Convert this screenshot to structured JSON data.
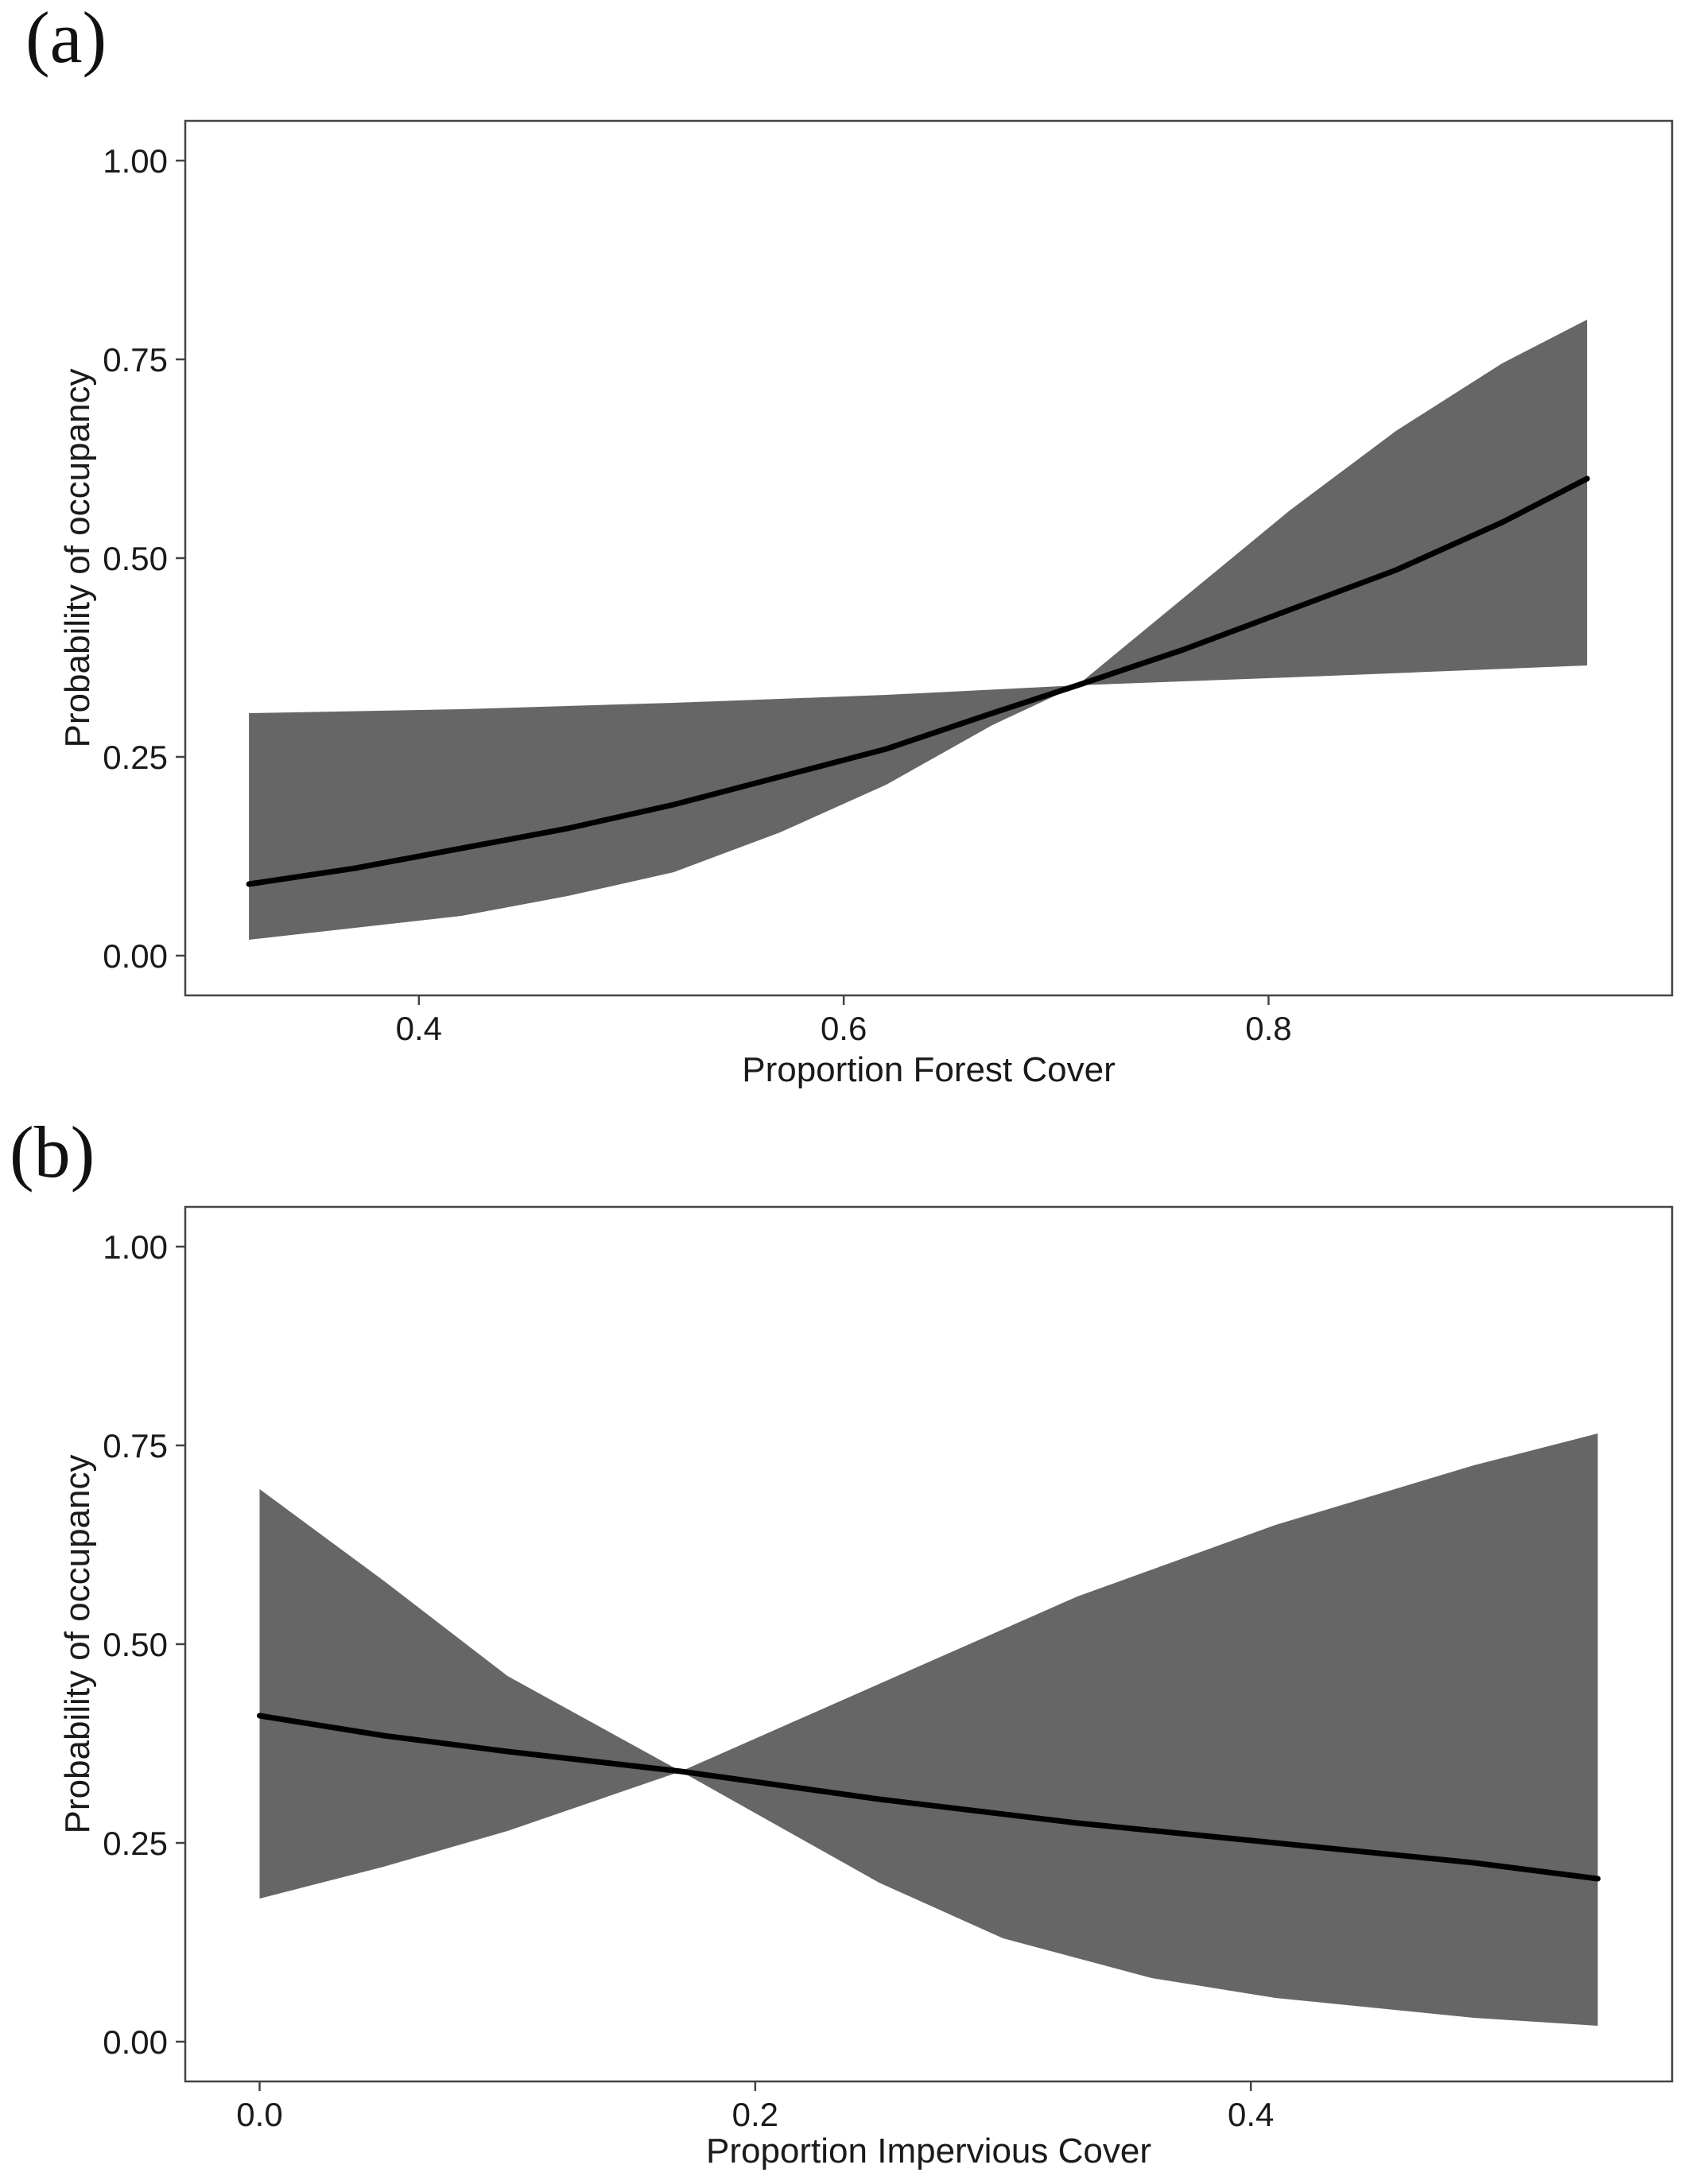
{
  "chart_data": [
    {
      "type": "line",
      "panel_label": "(a)",
      "xlabel": "Proportion Forest Cover",
      "ylabel": "Probability of occupancy",
      "xlim": [
        0.29,
        0.99
      ],
      "ylim": [
        -0.05,
        1.05
      ],
      "x_ticks": [
        0.4,
        0.6,
        0.8
      ],
      "x_tick_labels": [
        "0.4",
        "0.6",
        "0.8"
      ],
      "y_ticks": [
        0.0,
        0.25,
        0.5,
        0.75,
        1.0
      ],
      "y_tick_labels": [
        "0.00",
        "0.25",
        "0.50",
        "0.75",
        "1.00"
      ],
      "grid": false,
      "fit": {
        "x": [
          0.32,
          0.37,
          0.42,
          0.47,
          0.52,
          0.57,
          0.62,
          0.67,
          0.71,
          0.76,
          0.81,
          0.86,
          0.91,
          0.95
        ],
        "y": [
          0.09,
          0.11,
          0.135,
          0.16,
          0.19,
          0.225,
          0.26,
          0.305,
          0.34,
          0.385,
          0.435,
          0.485,
          0.545,
          0.6
        ]
      },
      "band_upper": {
        "x": [
          0.32,
          0.42,
          0.52,
          0.62,
          0.71,
          0.76,
          0.81,
          0.86,
          0.91,
          0.95
        ],
        "y": [
          0.305,
          0.31,
          0.318,
          0.328,
          0.34,
          0.45,
          0.56,
          0.66,
          0.745,
          0.8
        ]
      },
      "band_lower": {
        "x": [
          0.32,
          0.37,
          0.42,
          0.47,
          0.52,
          0.57,
          0.62,
          0.67,
          0.71,
          0.81,
          0.95
        ],
        "y": [
          0.02,
          0.035,
          0.05,
          0.075,
          0.105,
          0.155,
          0.215,
          0.29,
          0.34,
          0.35,
          0.365
        ]
      }
    },
    {
      "type": "line",
      "panel_label": "(b)",
      "xlabel": "Proportion Impervious Cover",
      "ylabel": "Probability of occupancy",
      "xlim": [
        -0.03,
        0.57
      ],
      "ylim": [
        -0.05,
        1.05
      ],
      "x_ticks": [
        0.0,
        0.2,
        0.4
      ],
      "x_tick_labels": [
        "0.0",
        "0.2",
        "0.4"
      ],
      "y_ticks": [
        0.0,
        0.25,
        0.5,
        0.75,
        1.0
      ],
      "y_tick_labels": [
        "0.00",
        "0.25",
        "0.50",
        "0.75",
        "1.00"
      ],
      "grid": false,
      "fit": {
        "x": [
          0.0,
          0.05,
          0.1,
          0.17,
          0.25,
          0.33,
          0.41,
          0.49,
          0.54
        ],
        "y": [
          0.41,
          0.385,
          0.365,
          0.34,
          0.305,
          0.275,
          0.25,
          0.225,
          0.205
        ]
      },
      "band_upper": {
        "x": [
          0.0,
          0.05,
          0.1,
          0.17,
          0.25,
          0.33,
          0.41,
          0.49,
          0.54
        ],
        "y": [
          0.695,
          0.58,
          0.46,
          0.34,
          0.45,
          0.56,
          0.65,
          0.725,
          0.765
        ]
      },
      "band_lower": {
        "x": [
          0.0,
          0.05,
          0.1,
          0.17,
          0.25,
          0.3,
          0.36,
          0.41,
          0.49,
          0.54
        ],
        "y": [
          0.18,
          0.22,
          0.265,
          0.34,
          0.2,
          0.13,
          0.08,
          0.055,
          0.03,
          0.02
        ]
      }
    }
  ]
}
